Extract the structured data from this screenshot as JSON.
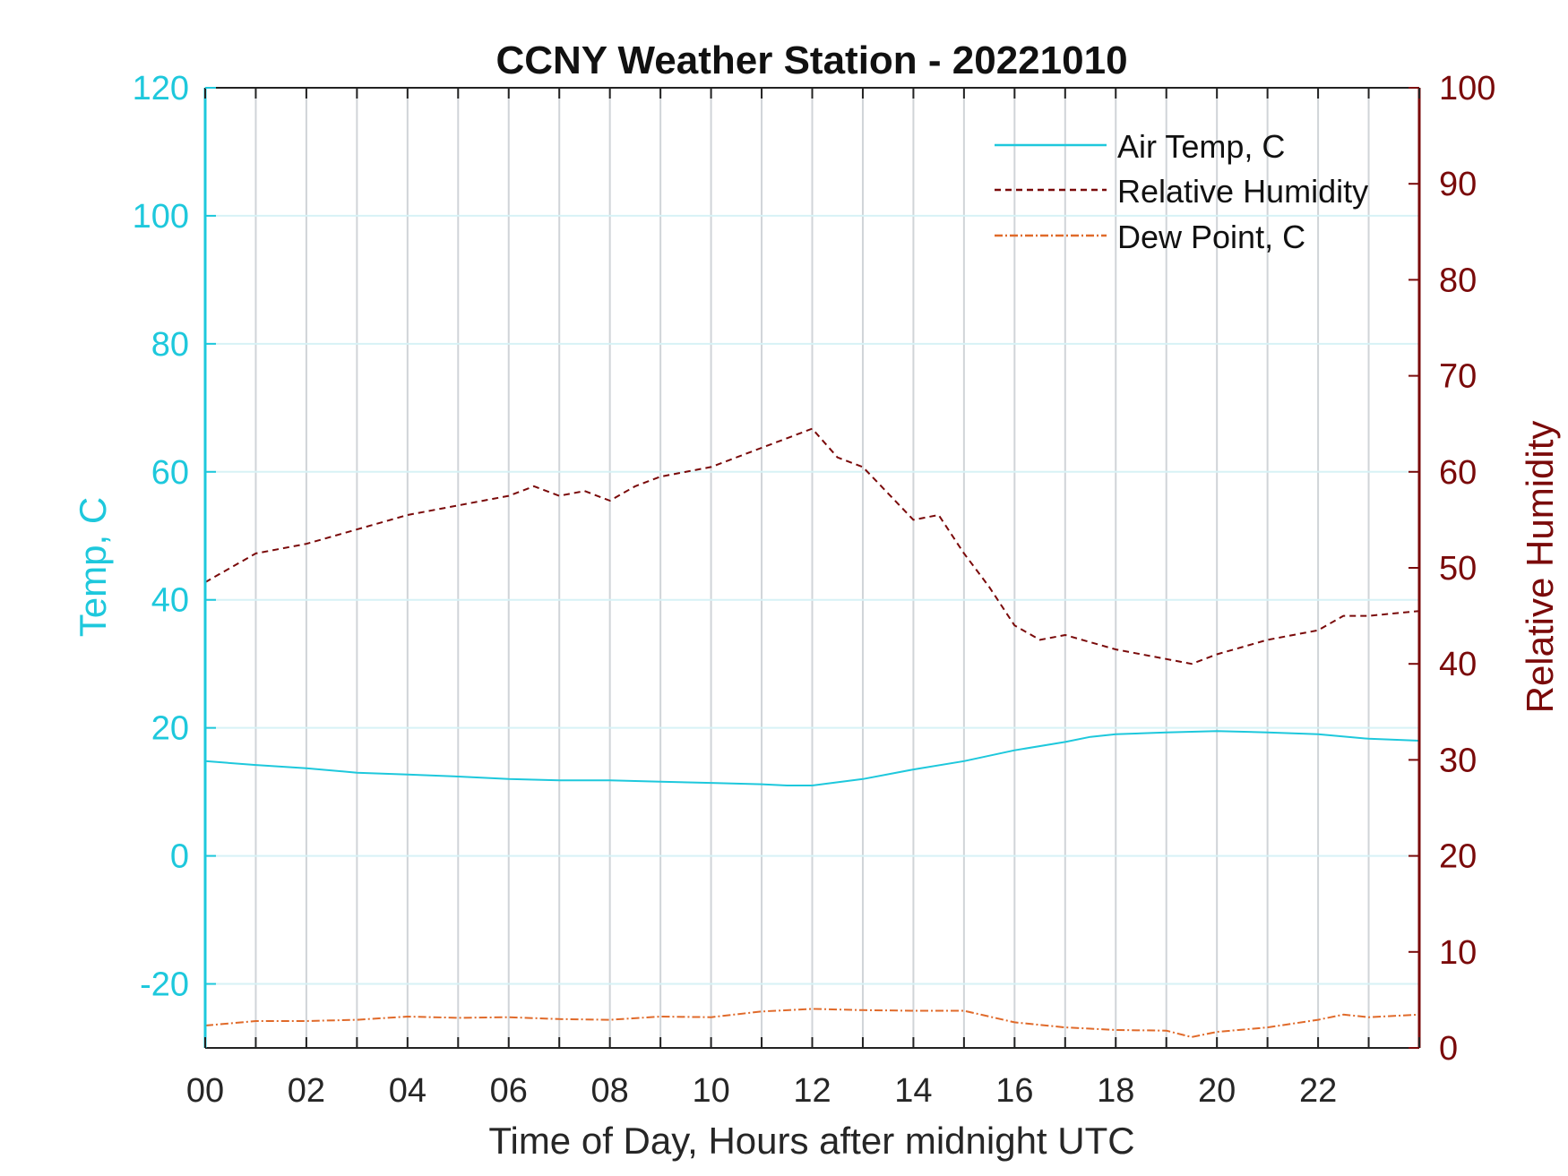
{
  "colors": {
    "air_temp": "#1ec8dc",
    "relative_humidity": "#7a0a0a",
    "dew_point": "#e06a2a",
    "xgrid": "#d0d4d8",
    "ygrid": "#d7f2f6",
    "frame": "#222222"
  },
  "chart_data": {
    "type": "line",
    "title": "CCNY Weather Station - 20221010",
    "xlabel": "Time of Day, Hours after midnight UTC",
    "ylabel_left": "Temp, C",
    "ylabel_right": "Relative Humidity",
    "xlim": [
      0,
      24
    ],
    "ylim_left": [
      -30,
      120
    ],
    "ylim_right": [
      0,
      100
    ],
    "x_tick_labels": [
      "00",
      "02",
      "04",
      "06",
      "08",
      "10",
      "12",
      "14",
      "16",
      "18",
      "20",
      "22"
    ],
    "x_tick_values": [
      0,
      2,
      4,
      6,
      8,
      10,
      12,
      14,
      16,
      18,
      20,
      22
    ],
    "y_left_ticks": [
      -20,
      0,
      20,
      40,
      60,
      80,
      100,
      120
    ],
    "y_right_ticks": [
      0,
      10,
      20,
      30,
      40,
      50,
      60,
      70,
      80,
      90,
      100
    ],
    "grid": true,
    "legend_position": "top-right",
    "series": [
      {
        "name": "Air Temp, C",
        "axis": "left",
        "style": "solid",
        "x": [
          0,
          1,
          2,
          3,
          4,
          5,
          6,
          7,
          8,
          9,
          10,
          11,
          11.5,
          12,
          13,
          14,
          15,
          16,
          17,
          17.5,
          18,
          19,
          19.5,
          20,
          21,
          22,
          23,
          24
        ],
        "y": [
          14.8,
          14.2,
          13.7,
          13.0,
          12.7,
          12.4,
          12.0,
          11.8,
          11.8,
          11.6,
          11.4,
          11.2,
          11.0,
          11.0,
          12.0,
          13.5,
          14.8,
          16.5,
          17.8,
          18.6,
          19.0,
          19.3,
          19.4,
          19.5,
          19.3,
          19.0,
          18.3,
          18.0
        ]
      },
      {
        "name": "Relative Humidity",
        "axis": "right",
        "style": "dashed",
        "x": [
          0,
          0.5,
          1,
          2,
          3,
          4,
          5,
          6,
          6.5,
          7,
          7.5,
          8,
          8.5,
          9,
          10,
          11,
          11.5,
          12,
          12.5,
          13,
          14,
          14.5,
          15,
          15.5,
          16,
          16.5,
          17,
          18,
          19,
          19.5,
          20,
          21,
          22,
          22.5,
          23,
          24
        ],
        "y": [
          48.5,
          50.0,
          51.5,
          52.5,
          54.0,
          55.5,
          56.5,
          57.5,
          58.5,
          57.5,
          58.0,
          57.0,
          58.5,
          59.5,
          60.5,
          62.5,
          63.5,
          64.5,
          61.5,
          60.5,
          55.0,
          55.5,
          51.5,
          48.0,
          44.0,
          42.5,
          43.0,
          41.5,
          40.5,
          40.0,
          41.0,
          42.5,
          43.5,
          45.0,
          45.0,
          45.5
        ]
      },
      {
        "name": "Dew Point, C",
        "axis": "left",
        "style": "dashdot",
        "x": [
          0,
          1,
          2,
          3,
          4,
          5,
          6,
          7,
          8,
          9,
          10,
          11,
          12,
          13,
          14,
          15,
          16,
          17,
          18,
          19,
          19.5,
          20,
          21,
          22,
          22.5,
          23,
          24
        ],
        "y": [
          -26.5,
          -25.8,
          -25.8,
          -25.6,
          -25.1,
          -25.3,
          -25.2,
          -25.5,
          -25.6,
          -25.1,
          -25.2,
          -24.3,
          -23.9,
          -24.1,
          -24.2,
          -24.2,
          -26.0,
          -26.8,
          -27.2,
          -27.3,
          -28.3,
          -27.5,
          -26.8,
          -25.6,
          -24.8,
          -25.2,
          -24.8
        ]
      }
    ]
  }
}
